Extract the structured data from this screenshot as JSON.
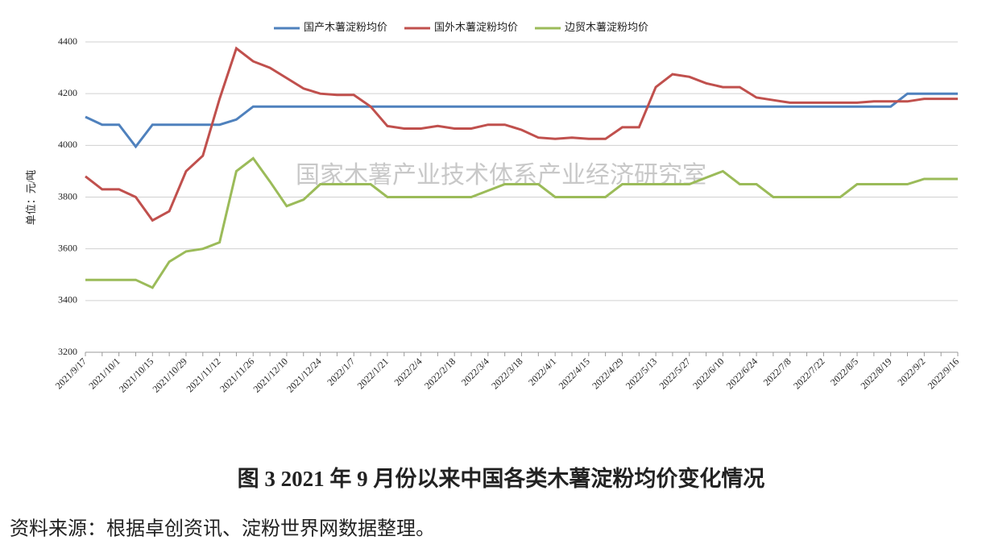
{
  "chart_data": {
    "type": "line",
    "watermark": "国家木薯产业技术体系产业经济研究室",
    "y_label": "单位：元/吨",
    "caption": "图 3   2021 年 9 月份以来中国各类木薯淀粉均价变化情况",
    "source": "资料来源：根据卓创资讯、淀粉世界网数据整理。",
    "categories": [
      "2021/9/17",
      null,
      "2021/10/1",
      null,
      "2021/10/15",
      null,
      "2021/10/29",
      null,
      "2021/11/12",
      null,
      "2021/11/26",
      null,
      "2021/12/10",
      null,
      "2021/12/24",
      null,
      "2022/1/7",
      null,
      "2022/1/21",
      null,
      "2022/2/4",
      null,
      "2022/2/18",
      null,
      "2022/3/4",
      null,
      "2022/3/18",
      null,
      "2022/4/1",
      null,
      "2022/4/15",
      null,
      "2022/4/29",
      null,
      "2022/5/13",
      null,
      "2022/5/27",
      null,
      "2022/6/10",
      null,
      "2022/6/24",
      null,
      "2022/7/8",
      null,
      "2022/7/22",
      null,
      "2022/8/5",
      null,
      "2022/8/19",
      null,
      "2022/9/2",
      null,
      "2022/9/16"
    ],
    "series": [
      {
        "name": "国产木薯淀粉均价",
        "color": "#4f81bd",
        "values": [
          4110,
          4080,
          4080,
          3995,
          4080,
          4080,
          4080,
          4080,
          4080,
          4100,
          4150,
          4150,
          4150,
          4150,
          4150,
          4150,
          4150,
          4150,
          4150,
          4150,
          4150,
          4150,
          4150,
          4150,
          4150,
          4150,
          4150,
          4150,
          4150,
          4150,
          4150,
          4150,
          4150,
          4150,
          4150,
          4150,
          4150,
          4150,
          4150,
          4150,
          4150,
          4150,
          4150,
          4150,
          4150,
          4150,
          4150,
          4150,
          4150,
          4200,
          4200,
          4200,
          4200
        ]
      },
      {
        "name": "国外木薯淀粉均价",
        "color": "#c0504d",
        "values": [
          3880,
          3830,
          3830,
          3800,
          3710,
          3745,
          3900,
          3960,
          4180,
          4375,
          4325,
          4300,
          4260,
          4220,
          4200,
          4195,
          4195,
          4150,
          4075,
          4065,
          4065,
          4075,
          4065,
          4065,
          4080,
          4080,
          4060,
          4030,
          4025,
          4030,
          4025,
          4025,
          4070,
          4070,
          4225,
          4275,
          4265,
          4240,
          4225,
          4225,
          4185,
          4175,
          4165,
          4165,
          4165,
          4165,
          4165,
          4170,
          4170,
          4170,
          4180,
          4180,
          4180
        ]
      },
      {
        "name": "边贸木薯淀粉均价",
        "color": "#9bbb59",
        "values": [
          3480,
          3480,
          3480,
          3480,
          3450,
          3550,
          3590,
          3600,
          3625,
          3900,
          3950,
          3860,
          3765,
          3790,
          3850,
          3850,
          3850,
          3850,
          3800,
          3800,
          3800,
          3800,
          3800,
          3800,
          3825,
          3850,
          3850,
          3850,
          3800,
          3800,
          3800,
          3800,
          3850,
          3850,
          3850,
          3850,
          3850,
          3875,
          3900,
          3850,
          3850,
          3800,
          3800,
          3800,
          3800,
          3800,
          3850,
          3850,
          3850,
          3850,
          3870,
          3870,
          3870
        ]
      }
    ],
    "ylim": [
      3200,
      4400
    ],
    "yticks": [
      3200,
      3400,
      3600,
      3800,
      4000,
      4200,
      4400
    ],
    "grid": true
  }
}
